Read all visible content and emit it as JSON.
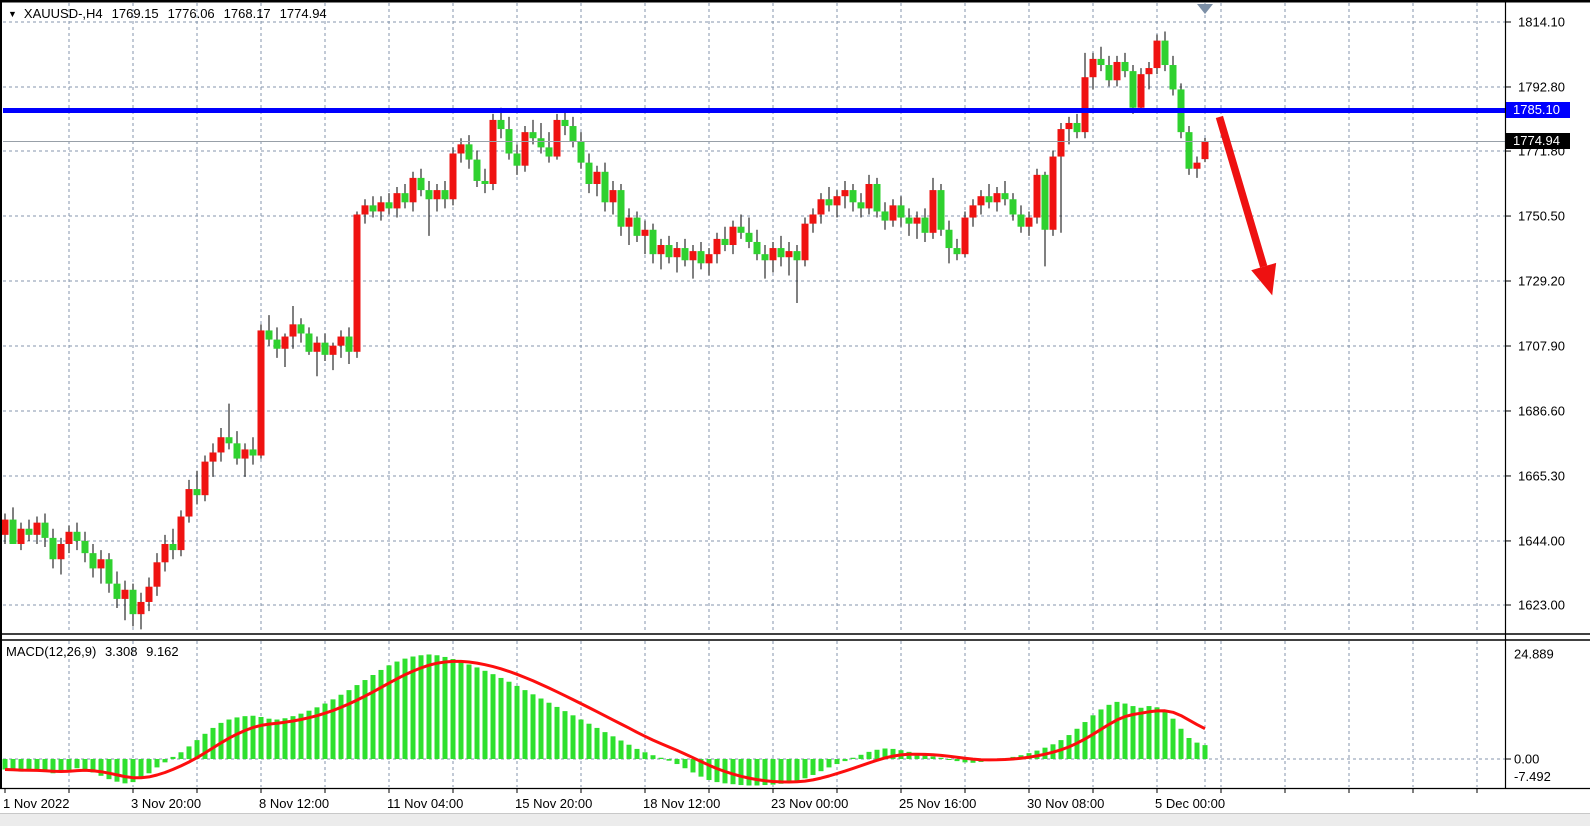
{
  "title_bar": {
    "expander_icon": "▼",
    "symbol_period": "XAUUSD-,H4",
    "open": "1769.15",
    "high": "1776.06",
    "low": "1768.17",
    "close": "1774.94"
  },
  "macd_panel": {
    "label": "MACD(12,26,9)",
    "macd_value": "3.308",
    "signal_value": "9.162",
    "scale_labels": [
      "24.889",
      "0.00",
      "-7.492"
    ]
  },
  "chart_data": {
    "type": "candlestick+macd",
    "symbol": "XAUUSD-",
    "period": "H4",
    "price_axis": {
      "ticks": [
        1814.1,
        1792.8,
        1771.8,
        1750.5,
        1729.2,
        1707.9,
        1686.6,
        1665.3,
        1644.0,
        1623.0
      ],
      "range_top": 1821.0,
      "range_bottom": 1614.0
    },
    "time_axis": {
      "labels": [
        {
          "text": "1 Nov 2022",
          "bar": 0
        },
        {
          "text": "3 Nov 20:00",
          "bar": 16
        },
        {
          "text": "8 Nov 12:00",
          "bar": 32
        },
        {
          "text": "11 Nov 04:00",
          "bar": 48
        },
        {
          "text": "15 Nov 20:00",
          "bar": 64
        },
        {
          "text": "18 Nov 12:00",
          "bar": 80
        },
        {
          "text": "23 Nov 00:00",
          "bar": 96
        },
        {
          "text": "25 Nov 16:00",
          "bar": 112
        },
        {
          "text": "30 Nov 08:00",
          "bar": 128
        },
        {
          "text": "5 Dec 00:00",
          "bar": 144
        }
      ]
    },
    "hline": {
      "label": "1785.10",
      "price": 1785.1,
      "color": "#0000FE"
    },
    "bid": {
      "label": "1774.94",
      "price": 1774.94
    },
    "arrow": {
      "from_bar": 151.8,
      "from_price": 1783.0,
      "to_bar": 158.4,
      "to_price": 1724.5,
      "color": "#EE1111"
    },
    "colors": {
      "up_candle": "#EF1311",
      "down_candle": "#2FD12F",
      "wick": "#000000",
      "grid": "#8496AC",
      "macd_bar": "#2EE02E",
      "macd_signal": "#FD0E0E",
      "bid_line": "#98A0A8",
      "scroll_marker": "#7C8FA6"
    },
    "candles_ohlc": [
      [
        1646,
        1653,
        1643,
        1651
      ],
      [
        1651,
        1655,
        1648,
        1643
      ],
      [
        1643,
        1650,
        1641,
        1648
      ],
      [
        1648,
        1651,
        1644,
        1646
      ],
      [
        1646,
        1652,
        1643,
        1650
      ],
      [
        1650,
        1653,
        1642,
        1645
      ],
      [
        1645,
        1648,
        1635,
        1638
      ],
      [
        1638,
        1645,
        1633,
        1643
      ],
      [
        1643,
        1649,
        1640,
        1647
      ],
      [
        1647,
        1650,
        1641,
        1644
      ],
      [
        1644,
        1647,
        1637,
        1640
      ],
      [
        1640,
        1643,
        1632,
        1635
      ],
      [
        1635,
        1641,
        1630,
        1638
      ],
      [
        1638,
        1640,
        1627,
        1630
      ],
      [
        1630,
        1634,
        1622,
        1625
      ],
      [
        1625,
        1631,
        1618,
        1628
      ],
      [
        1628,
        1630,
        1616,
        1620
      ],
      [
        1620,
        1627,
        1615,
        1624
      ],
      [
        1624,
        1632,
        1621,
        1629
      ],
      [
        1629,
        1640,
        1626,
        1637
      ],
      [
        1637,
        1646,
        1634,
        1643
      ],
      [
        1643,
        1648,
        1638,
        1641
      ],
      [
        1641,
        1654,
        1639,
        1652
      ],
      [
        1652,
        1664,
        1650,
        1661
      ],
      [
        1661,
        1667,
        1656,
        1659
      ],
      [
        1659,
        1672,
        1657,
        1670
      ],
      [
        1670,
        1676,
        1665,
        1673
      ],
      [
        1673,
        1681,
        1670,
        1678
      ],
      [
        1678,
        1689,
        1674,
        1676
      ],
      [
        1676,
        1680,
        1669,
        1671
      ],
      [
        1671,
        1676,
        1665,
        1674
      ],
      [
        1674,
        1678,
        1669,
        1672
      ],
      [
        1672,
        1715,
        1671,
        1713
      ],
      [
        1713,
        1718,
        1708,
        1710
      ],
      [
        1710,
        1714,
        1704,
        1707
      ],
      [
        1707,
        1712,
        1701,
        1711
      ],
      [
        1711,
        1721,
        1707,
        1715
      ],
      [
        1715,
        1717,
        1709,
        1712
      ],
      [
        1712,
        1714,
        1705,
        1706
      ],
      [
        1706,
        1711,
        1698,
        1709
      ],
      [
        1709,
        1712,
        1703,
        1705
      ],
      [
        1705,
        1709,
        1700,
        1708
      ],
      [
        1708,
        1713,
        1704,
        1711
      ],
      [
        1711,
        1714,
        1702,
        1706
      ],
      [
        1706,
        1752,
        1704,
        1751
      ],
      [
        1751,
        1756,
        1748,
        1754
      ],
      [
        1754,
        1757,
        1750,
        1752
      ],
      [
        1752,
        1757,
        1749,
        1755
      ],
      [
        1755,
        1758,
        1751,
        1753
      ],
      [
        1753,
        1760,
        1750,
        1758
      ],
      [
        1758,
        1761,
        1753,
        1755
      ],
      [
        1755,
        1765,
        1752,
        1763
      ],
      [
        1763,
        1766,
        1757,
        1759
      ],
      [
        1759,
        1762,
        1744,
        1756
      ],
      [
        1756,
        1761,
        1752,
        1759
      ],
      [
        1759,
        1762,
        1753,
        1756
      ],
      [
        1756,
        1773,
        1754,
        1771
      ],
      [
        1771,
        1776,
        1768,
        1774
      ],
      [
        1774,
        1777,
        1766,
        1769
      ],
      [
        1769,
        1772,
        1760,
        1762
      ],
      [
        1762,
        1766,
        1758,
        1761
      ],
      [
        1761,
        1784,
        1759,
        1782
      ],
      [
        1782,
        1786,
        1776,
        1779
      ],
      [
        1779,
        1783,
        1769,
        1771
      ],
      [
        1771,
        1774,
        1764,
        1767
      ],
      [
        1767,
        1780,
        1765,
        1778
      ],
      [
        1778,
        1782,
        1774,
        1776
      ],
      [
        1776,
        1781,
        1771,
        1773
      ],
      [
        1773,
        1778,
        1768,
        1770
      ],
      [
        1770,
        1784,
        1769,
        1782
      ],
      [
        1782,
        1785,
        1777,
        1780
      ],
      [
        1780,
        1783,
        1773,
        1775
      ],
      [
        1775,
        1778,
        1766,
        1768
      ],
      [
        1768,
        1771,
        1758,
        1761
      ],
      [
        1761,
        1767,
        1757,
        1765
      ],
      [
        1765,
        1768,
        1752,
        1755
      ],
      [
        1755,
        1762,
        1751,
        1759
      ],
      [
        1759,
        1761,
        1744,
        1747
      ],
      [
        1747,
        1753,
        1741,
        1750
      ],
      [
        1750,
        1752,
        1742,
        1744
      ],
      [
        1744,
        1749,
        1738,
        1746
      ],
      [
        1746,
        1748,
        1735,
        1738
      ],
      [
        1738,
        1743,
        1733,
        1741
      ],
      [
        1741,
        1744,
        1735,
        1737
      ],
      [
        1737,
        1742,
        1732,
        1740
      ],
      [
        1740,
        1743,
        1734,
        1736
      ],
      [
        1736,
        1741,
        1730,
        1739
      ],
      [
        1739,
        1742,
        1733,
        1735
      ],
      [
        1735,
        1740,
        1731,
        1738
      ],
      [
        1738,
        1745,
        1735,
        1743
      ],
      [
        1743,
        1747,
        1739,
        1741
      ],
      [
        1741,
        1749,
        1738,
        1747
      ],
      [
        1747,
        1751,
        1743,
        1745
      ],
      [
        1745,
        1750,
        1740,
        1742
      ],
      [
        1742,
        1746,
        1736,
        1738
      ],
      [
        1738,
        1741,
        1730,
        1736
      ],
      [
        1736,
        1742,
        1732,
        1740
      ],
      [
        1740,
        1744,
        1734,
        1737
      ],
      [
        1737,
        1742,
        1731,
        1739
      ],
      [
        1739,
        1741,
        1722,
        1736
      ],
      [
        1736,
        1750,
        1734,
        1748
      ],
      [
        1748,
        1753,
        1745,
        1751
      ],
      [
        1751,
        1758,
        1748,
        1756
      ],
      [
        1756,
        1760,
        1752,
        1754
      ],
      [
        1754,
        1759,
        1750,
        1757
      ],
      [
        1757,
        1762,
        1753,
        1759
      ],
      [
        1759,
        1761,
        1752,
        1755
      ],
      [
        1755,
        1758,
        1750,
        1753
      ],
      [
        1753,
        1764,
        1751,
        1761
      ],
      [
        1761,
        1763,
        1750,
        1752
      ],
      [
        1752,
        1755,
        1746,
        1749
      ],
      [
        1749,
        1756,
        1747,
        1754
      ],
      [
        1754,
        1757,
        1747,
        1750
      ],
      [
        1750,
        1753,
        1744,
        1748
      ],
      [
        1748,
        1752,
        1743,
        1750
      ],
      [
        1750,
        1753,
        1742,
        1745
      ],
      [
        1745,
        1763,
        1743,
        1759
      ],
      [
        1759,
        1761,
        1744,
        1746
      ],
      [
        1746,
        1749,
        1735,
        1740
      ],
      [
        1740,
        1743,
        1736,
        1738
      ],
      [
        1738,
        1752,
        1737,
        1750
      ],
      [
        1750,
        1756,
        1747,
        1754
      ],
      [
        1754,
        1759,
        1751,
        1757
      ],
      [
        1757,
        1761,
        1753,
        1755
      ],
      [
        1755,
        1760,
        1752,
        1758
      ],
      [
        1758,
        1762,
        1754,
        1756
      ],
      [
        1756,
        1758,
        1749,
        1751
      ],
      [
        1751,
        1754,
        1745,
        1747
      ],
      [
        1747,
        1752,
        1744,
        1750
      ],
      [
        1750,
        1766,
        1748,
        1764
      ],
      [
        1764,
        1765,
        1734,
        1746
      ],
      [
        1746,
        1772,
        1744,
        1770
      ],
      [
        1770,
        1781,
        1745,
        1779
      ],
      [
        1779,
        1783,
        1774,
        1781
      ],
      [
        1781,
        1784,
        1776,
        1778
      ],
      [
        1778,
        1804,
        1776,
        1796
      ],
      [
        1796,
        1804,
        1792,
        1802
      ],
      [
        1802,
        1806,
        1798,
        1800
      ],
      [
        1800,
        1803,
        1793,
        1795
      ],
      [
        1795,
        1803,
        1793,
        1801
      ],
      [
        1801,
        1804,
        1796,
        1798
      ],
      [
        1798,
        1800,
        1784,
        1786
      ],
      [
        1786,
        1799,
        1785,
        1797
      ],
      [
        1797,
        1801,
        1792,
        1799
      ],
      [
        1799,
        1810,
        1797,
        1808
      ],
      [
        1808,
        1811,
        1798,
        1800
      ],
      [
        1800,
        1803,
        1790,
        1792
      ],
      [
        1792,
        1794,
        1776,
        1778
      ],
      [
        1778,
        1780,
        1764,
        1766
      ],
      [
        1766,
        1770,
        1763,
        1768
      ],
      [
        1769.15,
        1776.06,
        1768.17,
        1774.94
      ]
    ],
    "macd": {
      "params": "12,26,9",
      "last_macd": 3.308,
      "last_signal": 9.162,
      "scale": {
        "max": 24.889,
        "zero": 0.0,
        "min": -7.492
      },
      "histogram": [
        -2.5,
        -2.8,
        -3.0,
        -2.7,
        -2.9,
        -3.1,
        -3.4,
        -3.2,
        -2.6,
        -2.2,
        -2.4,
        -3.2,
        -4.0,
        -4.8,
        -5.4,
        -5.8,
        -5.5,
        -4.6,
        -3.4,
        -2.0,
        -0.8,
        0.5,
        1.6,
        3.0,
        4.5,
        6.0,
        7.4,
        8.6,
        9.4,
        9.9,
        10.2,
        10.3,
        10.0,
        9.6,
        9.4,
        9.7,
        10.2,
        10.8,
        11.5,
        12.3,
        13.2,
        14.2,
        15.3,
        16.4,
        17.6,
        18.8,
        20.0,
        21.2,
        22.3,
        23.2,
        23.9,
        24.4,
        24.7,
        24.889,
        24.7,
        24.3,
        23.8,
        23.2,
        22.5,
        21.8,
        21.0,
        20.2,
        19.3,
        18.4,
        17.4,
        16.4,
        15.4,
        14.4,
        13.4,
        12.4,
        11.4,
        10.4,
        9.4,
        8.4,
        7.4,
        6.4,
        5.4,
        4.4,
        3.4,
        2.4,
        1.6,
        0.9,
        0.3,
        -0.4,
        -1.2,
        -2.2,
        -3.2,
        -4.2,
        -5.0,
        -5.5,
        -5.8,
        -6.0,
        -6.2,
        -6.3,
        -6.3,
        -6.2,
        -6.1,
        -5.9,
        -5.6,
        -5.2,
        -4.6,
        -3.8,
        -2.9,
        -2.0,
        -1.2,
        -0.5,
        0.3,
        1.0,
        1.7,
        2.2,
        2.5,
        2.4,
        2.1,
        1.7,
        1.3,
        0.9,
        0.6,
        0.3,
        -0.1,
        -0.5,
        -0.8,
        -0.9,
        -0.7,
        -0.4,
        -0.1,
        0.2,
        0.5,
        0.9,
        1.4,
        2.0,
        2.7,
        3.5,
        4.5,
        5.7,
        7.2,
        8.8,
        10.4,
        11.8,
        12.9,
        13.6,
        13.2,
        12.6,
        12.2,
        12.6,
        12.3,
        11.6,
        9.6,
        7.2,
        5.0,
        3.9,
        3.308
      ]
    }
  }
}
